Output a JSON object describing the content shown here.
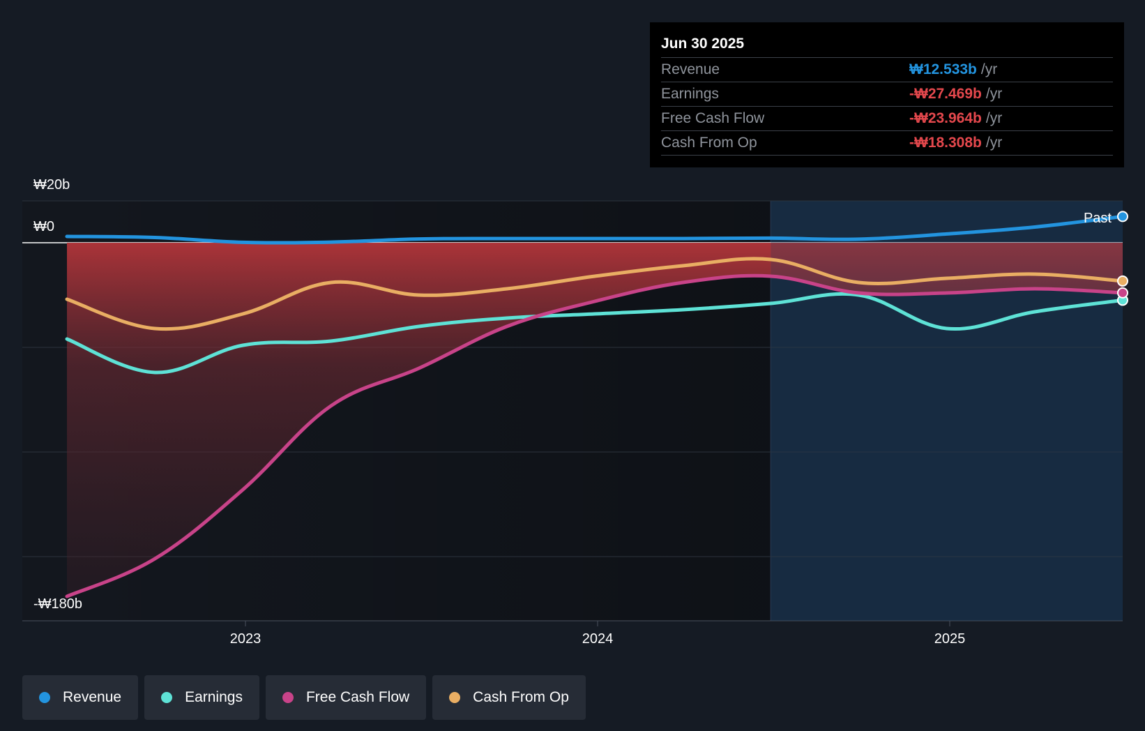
{
  "chart_data": {
    "type": "line",
    "currency_symbol": "₩",
    "y_axis": {
      "max_label": "₩20b",
      "zero_label": "₩0",
      "min_label": "-₩180b",
      "ylim": [
        -180,
        20
      ],
      "gridlines": [
        20,
        0,
        -50,
        -100,
        -150
      ]
    },
    "x_axis": {
      "ticks": [
        {
          "label": "2023",
          "value": 2023.0
        },
        {
          "label": "2024",
          "value": 2024.0
        },
        {
          "label": "2025",
          "value": 2025.0
        }
      ],
      "xlim": [
        2022.365,
        2025.5
      ]
    },
    "past_label": "Past",
    "past_start": 2024.5,
    "series": [
      {
        "name": "Revenue",
        "color": "#2394df",
        "x": [
          2022.5,
          2022.75,
          2023.0,
          2023.25,
          2023.5,
          2023.75,
          2024.0,
          2024.25,
          2024.5,
          2024.75,
          2025.0,
          2025.25,
          2025.5
        ],
        "values": [
          3.0,
          2.5,
          0.2,
          0.3,
          1.8,
          2.0,
          2.0,
          2.0,
          2.2,
          1.7,
          4.2,
          7.5,
          12.533
        ]
      },
      {
        "name": "Earnings",
        "color": "#5ee2d6",
        "x": [
          2022.5,
          2022.75,
          2023.0,
          2023.25,
          2023.5,
          2023.75,
          2024.0,
          2024.25,
          2024.5,
          2024.75,
          2025.0,
          2025.25,
          2025.5
        ],
        "values": [
          -46,
          -62,
          -49,
          -47,
          -40,
          -36,
          -34,
          -32,
          -29,
          -25,
          -41,
          -33,
          -27.469
        ]
      },
      {
        "name": "Free Cash Flow",
        "color": "#c84389",
        "x": [
          2022.5,
          2022.75,
          2023.0,
          2023.25,
          2023.5,
          2023.75,
          2024.0,
          2024.25,
          2024.5,
          2024.75,
          2025.0,
          2025.25,
          2025.5
        ],
        "values": [
          -169,
          -151,
          -118,
          -78,
          -60,
          -40,
          -28,
          -19,
          -16,
          -24,
          -24,
          -22,
          -23.964
        ]
      },
      {
        "name": "Cash From Op",
        "color": "#e9ae63",
        "x": [
          2022.5,
          2022.75,
          2023.0,
          2023.25,
          2023.5,
          2023.75,
          2024.0,
          2024.25,
          2024.5,
          2024.75,
          2025.0,
          2025.25,
          2025.5
        ],
        "values": [
          -27,
          -41,
          -34,
          -19,
          -25,
          -22,
          -16,
          -11,
          -8,
          -19,
          -17,
          -15,
          -18.308
        ]
      }
    ]
  },
  "tooltip": {
    "date": "Jun 30 2025",
    "rows": [
      {
        "name": "Revenue",
        "value": "₩12.533b",
        "unit": "/yr",
        "color": "#2394df"
      },
      {
        "name": "Earnings",
        "value": "-₩27.469b",
        "unit": "/yr",
        "color": "#e5484d"
      },
      {
        "name": "Free Cash Flow",
        "value": "-₩23.964b",
        "unit": "/yr",
        "color": "#e5484d"
      },
      {
        "name": "Cash From Op",
        "value": "-₩18.308b",
        "unit": "/yr",
        "color": "#e5484d"
      }
    ]
  },
  "legend": [
    {
      "label": "Revenue",
      "color": "#2394df"
    },
    {
      "label": "Earnings",
      "color": "#5ee2d6"
    },
    {
      "label": "Free Cash Flow",
      "color": "#c84389"
    },
    {
      "label": "Cash From Op",
      "color": "#e9ae63"
    }
  ]
}
